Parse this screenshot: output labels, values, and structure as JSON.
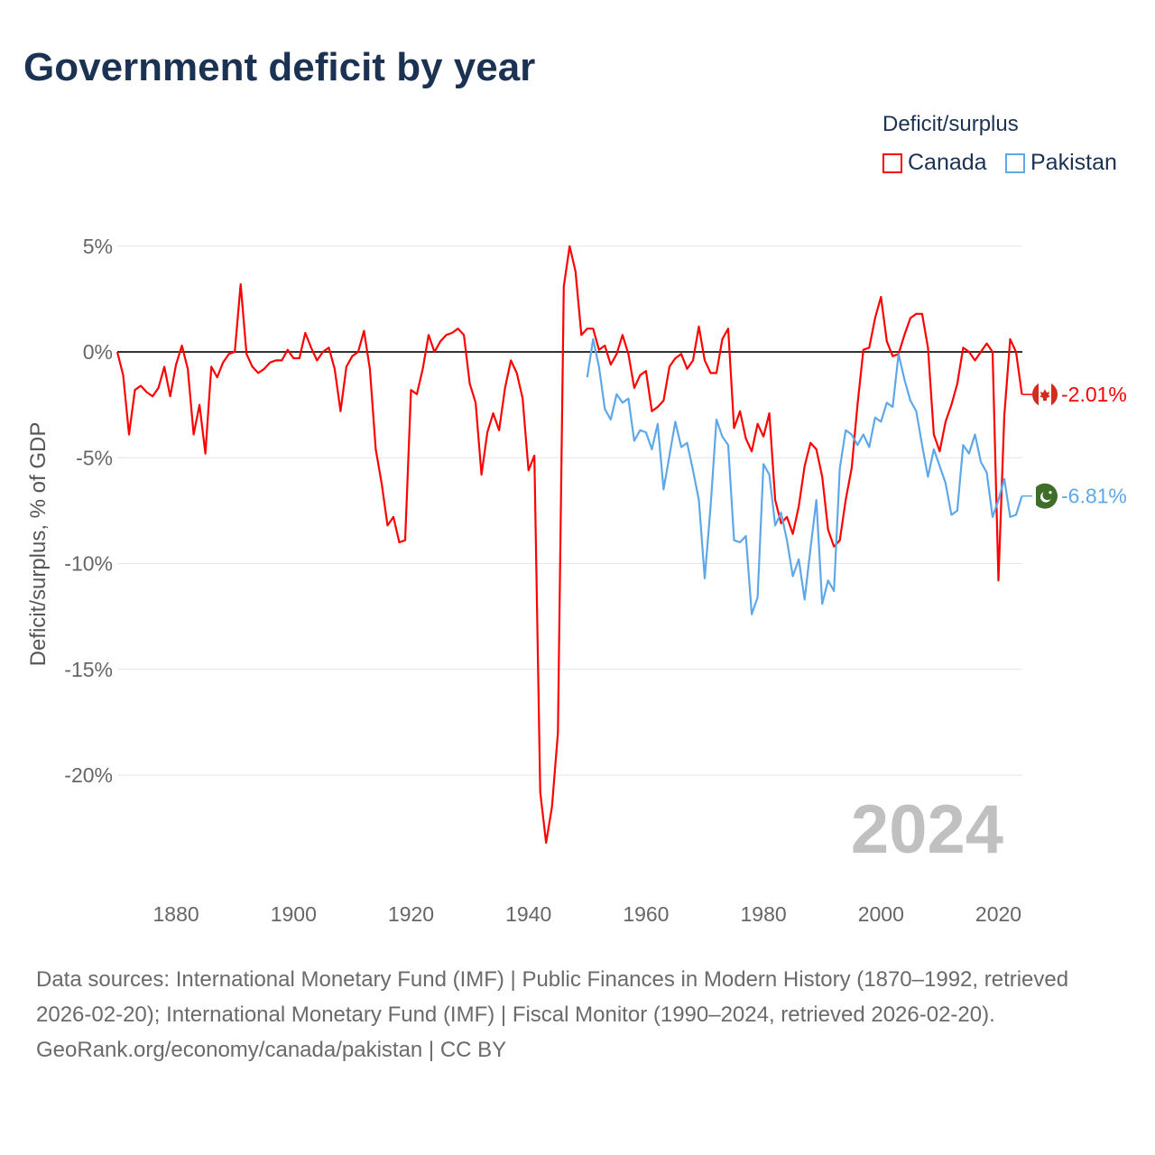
{
  "title": "Government deficit by year",
  "legend": {
    "title": "Deficit/surplus",
    "items": [
      {
        "label": "Canada",
        "color": "#ff0000"
      },
      {
        "label": "Pakistan",
        "color": "#5ea8ea"
      }
    ]
  },
  "year_label": "2024",
  "footer": {
    "sources": "Data sources: International Monetary Fund (IMF) | Public Finances in Modern History (1870–1992, retrieved 2026-02-20); International Monetary Fund (IMF) | Fiscal Monitor (1990–2024, retrieved 2026-02-20).",
    "credit": "GeoRank.org/economy/canada/pakistan | CC BY"
  },
  "chart_data": {
    "type": "line",
    "title": "Government deficit by year",
    "xlabel": "",
    "ylabel": "Deficit/surplus, % of GDP",
    "xlim": [
      1870,
      2024
    ],
    "ylim": [
      -24,
      5.5
    ],
    "xticks": [
      1880,
      1900,
      1920,
      1940,
      1960,
      1980,
      2000,
      2020
    ],
    "yticks": [
      {
        "v": 5,
        "label": "5%"
      },
      {
        "v": 0,
        "label": "0%"
      },
      {
        "v": -5,
        "label": "-5%"
      },
      {
        "v": -10,
        "label": "-10%"
      },
      {
        "v": -15,
        "label": "-15%"
      },
      {
        "v": -20,
        "label": "-20%"
      }
    ],
    "grid": true,
    "legend_position": "top-right",
    "series": [
      {
        "name": "Canada",
        "color": "#ff0000",
        "start": 1870,
        "end_label": "-2.01%",
        "icon": "canada-flag-icon",
        "values": [
          0,
          -1.1,
          -3.9,
          -1.8,
          -1.6,
          -1.9,
          -2.1,
          -1.7,
          -0.7,
          -2.1,
          -0.6,
          0.3,
          -0.8,
          -3.9,
          -2.5,
          -4.8,
          -0.7,
          -1.2,
          -0.5,
          -0.1,
          0,
          3.2,
          -0.1,
          -0.7,
          -1.0,
          -0.8,
          -0.5,
          -0.4,
          -0.4,
          0.1,
          -0.3,
          -0.3,
          0.9,
          0.2,
          -0.4,
          0,
          0.2,
          -0.8,
          -2.8,
          -0.7,
          -0.2,
          0,
          1.0,
          -0.8,
          -4.6,
          -6.2,
          -8.2,
          -7.8,
          -9.0,
          -8.9,
          -1.8,
          -2.0,
          -0.8,
          0.8,
          0,
          0.5,
          0.8,
          0.9,
          1.1,
          0.8,
          -1.5,
          -2.4,
          -5.8,
          -3.8,
          -2.9,
          -3.7,
          -1.7,
          -0.4,
          -1.0,
          -2.2,
          -5.6,
          -4.9,
          -20.8,
          -23.2,
          -21.5,
          -18.0,
          3.1,
          5.0,
          3.8,
          0.8,
          1.1,
          1.1,
          0.1,
          0.3,
          -0.6,
          -0.1,
          0.8,
          -0.1,
          -1.7,
          -1.1,
          -0.9,
          -2.8,
          -2.6,
          -2.3,
          -0.7,
          -0.3,
          -0.1,
          -0.8,
          -0.4,
          1.2,
          -0.4,
          -1.0,
          -1.0,
          0.6,
          1.1,
          -3.6,
          -2.8,
          -4.1,
          -4.7,
          -3.4,
          -4.0,
          -2.9,
          -7.0,
          -8.1,
          -7.8,
          -8.6,
          -7.3,
          -5.4,
          -4.3,
          -4.6,
          -5.9,
          -8.4,
          -9.2,
          -8.9,
          -7.0,
          -5.5,
          -2.5,
          0.1,
          0.2,
          1.6,
          2.6,
          0.5,
          -0.2,
          -0.1,
          0.8,
          1.6,
          1.8,
          1.8,
          0.2,
          -3.9,
          -4.7,
          -3.3,
          -2.5,
          -1.5,
          0.2,
          0,
          -0.4,
          0,
          0.4,
          0,
          -10.8,
          -3.0,
          0.6,
          0,
          -2.01
        ]
      },
      {
        "name": "Pakistan",
        "color": "#5ea8ea",
        "start": 1950,
        "end_label": "-6.81%",
        "icon": "pakistan-flag-icon",
        "values": [
          -1.2,
          0.6,
          -0.7,
          -2.7,
          -3.2,
          -2.0,
          -2.4,
          -2.2,
          -4.2,
          -3.7,
          -3.8,
          -4.6,
          -3.4,
          -6.5,
          -4.9,
          -3.3,
          -4.5,
          -4.3,
          -5.6,
          -7.0,
          -10.7,
          -7.3,
          -3.2,
          -4.0,
          -4.4,
          -8.9,
          -9.0,
          -8.7,
          -12.4,
          -11.6,
          -5.3,
          -5.8,
          -8.2,
          -7.6,
          -8.9,
          -10.6,
          -9.8,
          -11.7,
          -9.3,
          -7.0,
          -11.9,
          -10.8,
          -11.3,
          -5.5,
          -3.7,
          -3.9,
          -4.4,
          -3.9,
          -4.5,
          -3.1,
          -3.3,
          -2.4,
          -2.6,
          -0.1,
          -1.3,
          -2.3,
          -2.8,
          -4.4,
          -5.9,
          -4.6,
          -5.4,
          -6.2,
          -7.7,
          -7.5,
          -4.4,
          -4.8,
          -3.9,
          -5.2,
          -5.7,
          -7.8,
          -7.0,
          -6.0,
          -7.8,
          -7.7,
          -6.81
        ]
      }
    ]
  }
}
